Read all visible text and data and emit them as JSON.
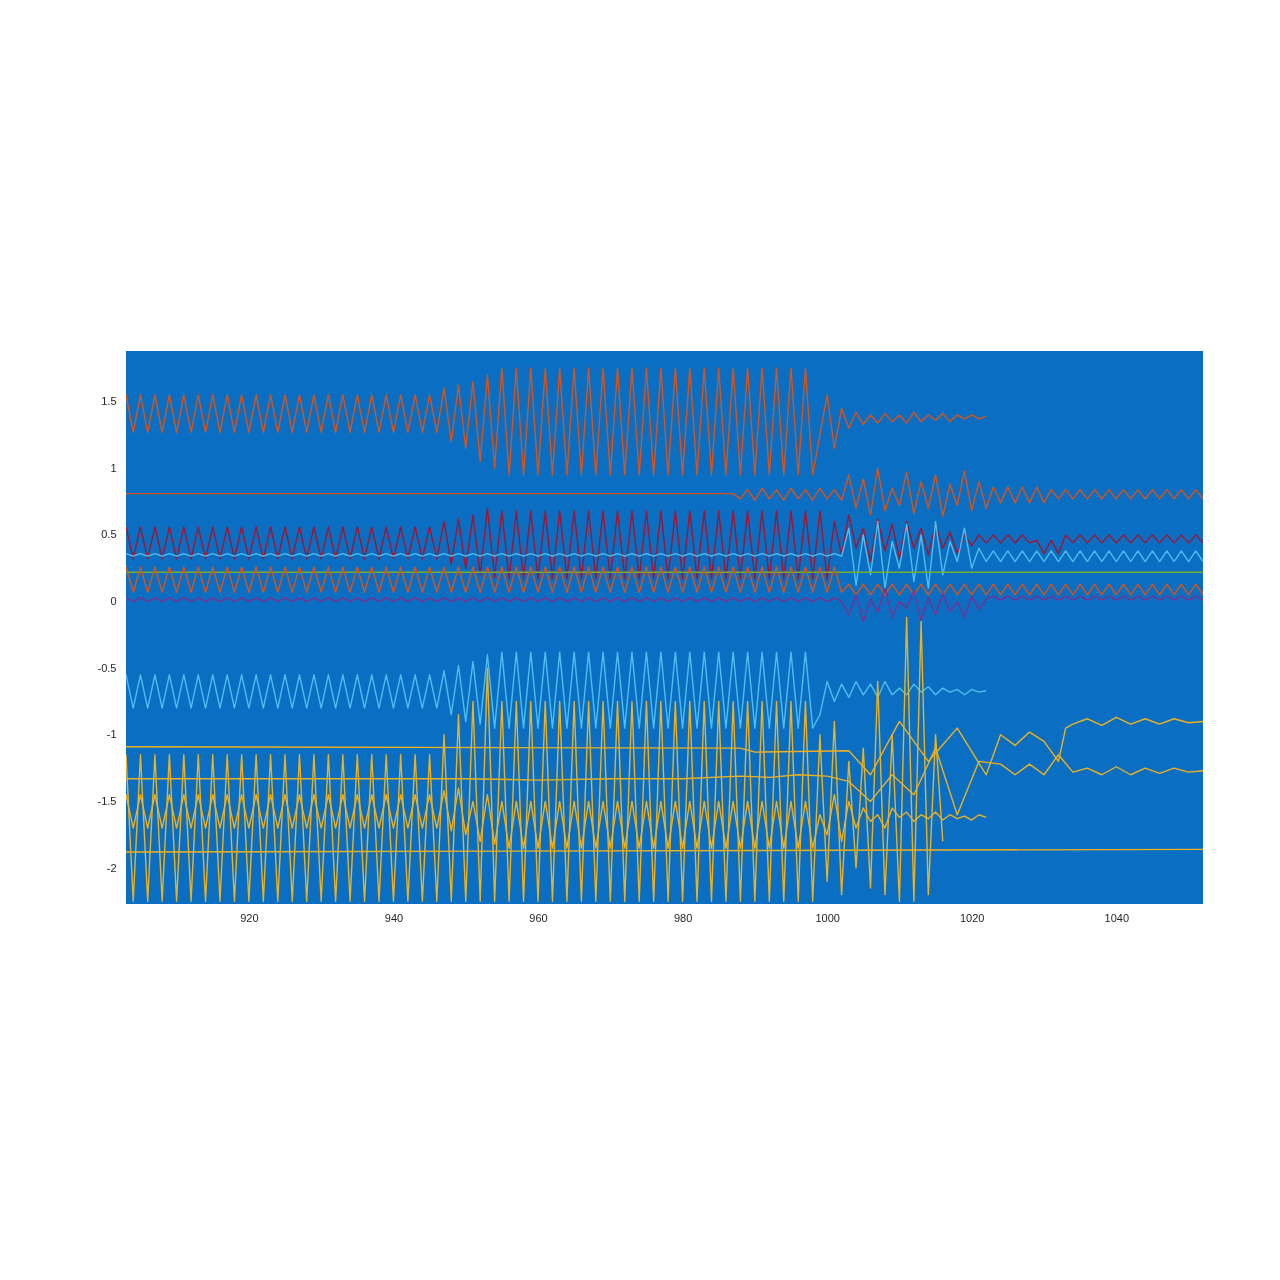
{
  "chart_data": {
    "type": "line",
    "xlim": [
      903,
      1052
    ],
    "ylim": [
      -2.27,
      1.88
    ],
    "xticks": [
      920,
      940,
      960,
      980,
      1000,
      1020,
      1040
    ],
    "yticks": [
      -2,
      -1.5,
      -1,
      -0.5,
      0,
      0.5,
      1,
      1.5
    ],
    "grid": false,
    "x": [
      903,
      904,
      905,
      906,
      907,
      908,
      909,
      910,
      911,
      912,
      913,
      914,
      915,
      916,
      917,
      918,
      919,
      920,
      921,
      922,
      923,
      924,
      925,
      926,
      927,
      928,
      929,
      930,
      931,
      932,
      933,
      934,
      935,
      936,
      937,
      938,
      939,
      940,
      941,
      942,
      943,
      944,
      945,
      946,
      947,
      948,
      949,
      950,
      951,
      952,
      953,
      954,
      955,
      956,
      957,
      958,
      959,
      960,
      961,
      962,
      963,
      964,
      965,
      966,
      967,
      968,
      969,
      970,
      971,
      972,
      973,
      974,
      975,
      976,
      977,
      978,
      979,
      980,
      981,
      982,
      983,
      984,
      985,
      986,
      987,
      988,
      989,
      990,
      991,
      992,
      993,
      994,
      995,
      996,
      997,
      998,
      999,
      1000,
      1001,
      1002,
      1003,
      1004,
      1005,
      1006,
      1007,
      1008,
      1009,
      1010,
      1011,
      1012,
      1013,
      1014,
      1015,
      1016,
      1017,
      1018,
      1019,
      1020,
      1021,
      1022,
      1023,
      1024,
      1025,
      1026,
      1027,
      1028,
      1029,
      1030,
      1031,
      1032,
      1033,
      1034,
      1035,
      1036,
      1037,
      1038,
      1039,
      1040,
      1041,
      1042,
      1043,
      1044,
      1045,
      1046,
      1047,
      1048,
      1049,
      1050,
      1051,
      1052
    ],
    "series": [
      {
        "color": "#D95319",
        "values": [
          1.55,
          1.27,
          1.55,
          1.27,
          1.55,
          1.27,
          1.55,
          1.27,
          1.55,
          1.27,
          1.55,
          1.27,
          1.55,
          1.27,
          1.55,
          1.27,
          1.55,
          1.27,
          1.55,
          1.27,
          1.55,
          1.27,
          1.55,
          1.27,
          1.55,
          1.27,
          1.55,
          1.27,
          1.55,
          1.27,
          1.55,
          1.27,
          1.55,
          1.27,
          1.55,
          1.27,
          1.55,
          1.27,
          1.55,
          1.27,
          1.55,
          1.27,
          1.55,
          1.27,
          1.6,
          1.2,
          1.62,
          1.15,
          1.65,
          1.05,
          1.7,
          1.0,
          1.75,
          0.95,
          1.75,
          0.95,
          1.75,
          0.95,
          1.75,
          0.95,
          1.75,
          0.95,
          1.75,
          0.95,
          1.75,
          0.95,
          1.75,
          0.95,
          1.75,
          0.95,
          1.75,
          0.95,
          1.75,
          0.95,
          1.75,
          0.95,
          1.75,
          0.95,
          1.75,
          0.95,
          1.75,
          0.95,
          1.75,
          0.95,
          1.75,
          0.95,
          1.75,
          0.95,
          1.75,
          0.95,
          1.75,
          0.95,
          1.75,
          0.95,
          1.75,
          0.95,
          1.25,
          1.55,
          1.15,
          1.45,
          1.3,
          1.42,
          1.33,
          1.4,
          1.34,
          1.41,
          1.35,
          1.4,
          1.34,
          1.42,
          1.35,
          1.4,
          1.36,
          1.41,
          1.35,
          1.4,
          1.37,
          1.4,
          1.37,
          1.39,
          null,
          null,
          null,
          null,
          null,
          null,
          null,
          null,
          null,
          null,
          null,
          null,
          null,
          null,
          null,
          null,
          null,
          null,
          null,
          null,
          null,
          null,
          null,
          null,
          null,
          null,
          null,
          null,
          null,
          null
        ]
      },
      {
        "color": "#D95319",
        "values": [
          0.81,
          0.81,
          0.81,
          0.81,
          0.81,
          0.81,
          0.81,
          0.81,
          0.81,
          0.81,
          0.81,
          0.81,
          0.81,
          0.81,
          0.81,
          0.81,
          0.81,
          0.81,
          0.81,
          0.81,
          0.81,
          0.81,
          0.81,
          0.81,
          0.81,
          0.81,
          0.81,
          0.81,
          0.81,
          0.81,
          0.81,
          0.81,
          0.81,
          0.81,
          0.81,
          0.81,
          0.81,
          0.81,
          0.81,
          0.81,
          0.81,
          0.81,
          0.81,
          0.81,
          0.81,
          0.81,
          0.81,
          0.81,
          0.81,
          0.81,
          0.81,
          0.81,
          0.81,
          0.81,
          0.81,
          0.81,
          0.81,
          0.81,
          0.81,
          0.81,
          0.81,
          0.81,
          0.81,
          0.81,
          0.81,
          0.81,
          0.81,
          0.81,
          0.81,
          0.81,
          0.81,
          0.81,
          0.81,
          0.81,
          0.81,
          0.81,
          0.81,
          0.81,
          0.81,
          0.81,
          0.81,
          0.81,
          0.81,
          0.81,
          0.81,
          0.77,
          0.84,
          0.76,
          0.85,
          0.77,
          0.84,
          0.76,
          0.85,
          0.77,
          0.84,
          0.76,
          0.85,
          0.77,
          0.84,
          0.76,
          0.95,
          0.7,
          0.92,
          0.65,
          1.0,
          0.68,
          0.85,
          0.72,
          0.97,
          0.66,
          0.9,
          0.7,
          0.95,
          0.64,
          0.88,
          0.72,
          0.98,
          0.68,
          0.9,
          0.7,
          0.86,
          0.74,
          0.86,
          0.74,
          0.86,
          0.74,
          0.86,
          0.74,
          0.84,
          0.77,
          0.84,
          0.77,
          0.84,
          0.77,
          0.84,
          0.77,
          0.84,
          0.77,
          0.84,
          0.77,
          0.84,
          0.77,
          0.84,
          0.77,
          0.84,
          0.77,
          0.84,
          0.77,
          0.84,
          0.77
        ]
      },
      {
        "color": "#A2142F",
        "values": [
          0.56,
          0.32,
          0.56,
          0.32,
          0.56,
          0.32,
          0.56,
          0.32,
          0.56,
          0.32,
          0.56,
          0.32,
          0.56,
          0.32,
          0.56,
          0.32,
          0.56,
          0.32,
          0.56,
          0.32,
          0.56,
          0.32,
          0.56,
          0.32,
          0.56,
          0.32,
          0.56,
          0.32,
          0.56,
          0.32,
          0.56,
          0.32,
          0.56,
          0.32,
          0.56,
          0.32,
          0.56,
          0.32,
          0.56,
          0.32,
          0.56,
          0.32,
          0.56,
          0.32,
          0.6,
          0.28,
          0.62,
          0.25,
          0.65,
          0.2,
          0.7,
          0.18,
          0.68,
          0.17,
          0.68,
          0.17,
          0.68,
          0.17,
          0.68,
          0.17,
          0.68,
          0.17,
          0.68,
          0.17,
          0.68,
          0.17,
          0.68,
          0.17,
          0.68,
          0.17,
          0.68,
          0.17,
          0.68,
          0.17,
          0.68,
          0.17,
          0.68,
          0.17,
          0.68,
          0.17,
          0.68,
          0.17,
          0.68,
          0.17,
          0.68,
          0.17,
          0.68,
          0.17,
          0.68,
          0.17,
          0.68,
          0.17,
          0.68,
          0.17,
          0.68,
          0.17,
          0.68,
          0.17,
          0.6,
          0.35,
          0.65,
          0.4,
          0.55,
          0.3,
          0.62,
          0.38,
          0.58,
          0.32,
          0.6,
          0.4,
          0.55,
          0.35,
          0.58,
          0.4,
          0.52,
          0.36,
          0.5,
          0.42,
          0.5,
          0.44,
          0.5,
          0.44,
          0.5,
          0.44,
          0.5,
          0.44,
          0.46,
          0.36,
          0.46,
          0.36,
          0.5,
          0.44,
          0.5,
          0.44,
          0.5,
          0.44,
          0.5,
          0.44,
          0.5,
          0.44,
          0.5,
          0.44,
          0.5,
          0.44,
          0.5,
          0.44,
          0.5,
          0.44,
          0.5,
          0.44
        ]
      },
      {
        "color": "#4DBEEE",
        "values": [
          0.36,
          0.34,
          0.36,
          0.34,
          0.36,
          0.34,
          0.36,
          0.34,
          0.36,
          0.34,
          0.36,
          0.34,
          0.36,
          0.34,
          0.36,
          0.34,
          0.36,
          0.34,
          0.36,
          0.34,
          0.36,
          0.34,
          0.36,
          0.34,
          0.36,
          0.34,
          0.36,
          0.34,
          0.36,
          0.34,
          0.36,
          0.34,
          0.36,
          0.34,
          0.36,
          0.34,
          0.36,
          0.34,
          0.36,
          0.34,
          0.36,
          0.34,
          0.36,
          0.34,
          0.36,
          0.34,
          0.36,
          0.34,
          0.36,
          0.34,
          0.36,
          0.34,
          0.36,
          0.34,
          0.36,
          0.34,
          0.36,
          0.34,
          0.36,
          0.34,
          0.36,
          0.34,
          0.36,
          0.34,
          0.36,
          0.34,
          0.36,
          0.34,
          0.36,
          0.34,
          0.36,
          0.34,
          0.36,
          0.34,
          0.36,
          0.34,
          0.36,
          0.34,
          0.36,
          0.34,
          0.36,
          0.34,
          0.36,
          0.34,
          0.36,
          0.34,
          0.36,
          0.34,
          0.36,
          0.34,
          0.36,
          0.34,
          0.36,
          0.34,
          0.36,
          0.34,
          0.36,
          0.34,
          0.36,
          0.34,
          0.55,
          0.12,
          0.5,
          0.2,
          0.6,
          0.1,
          0.45,
          0.25,
          0.58,
          0.15,
          0.5,
          0.1,
          0.6,
          0.2,
          0.45,
          0.3,
          0.55,
          0.25,
          0.4,
          0.3,
          0.38,
          0.3,
          0.38,
          0.3,
          0.38,
          0.3,
          0.38,
          0.3,
          0.38,
          0.3,
          0.38,
          0.3,
          0.38,
          0.3,
          0.38,
          0.3,
          0.38,
          0.3,
          0.38,
          0.3,
          0.38,
          0.3,
          0.38,
          0.3,
          0.38,
          0.3,
          0.38,
          0.3,
          0.38,
          0.3
        ]
      },
      {
        "color": "#77AC30",
        "x": [
          903,
          1052
        ],
        "values": [
          0.22,
          0.22
        ]
      },
      {
        "color": "#D95319",
        "values": [
          0.26,
          0.07,
          0.26,
          0.07,
          0.26,
          0.07,
          0.26,
          0.07,
          0.26,
          0.07,
          0.26,
          0.07,
          0.26,
          0.07,
          0.26,
          0.07,
          0.26,
          0.07,
          0.26,
          0.07,
          0.26,
          0.07,
          0.26,
          0.07,
          0.26,
          0.07,
          0.26,
          0.07,
          0.26,
          0.07,
          0.26,
          0.07,
          0.26,
          0.07,
          0.26,
          0.07,
          0.26,
          0.07,
          0.26,
          0.07,
          0.26,
          0.07,
          0.26,
          0.07,
          0.26,
          0.07,
          0.26,
          0.07,
          0.26,
          0.07,
          0.26,
          0.07,
          0.26,
          0.07,
          0.26,
          0.07,
          0.26,
          0.07,
          0.26,
          0.07,
          0.26,
          0.07,
          0.26,
          0.07,
          0.26,
          0.07,
          0.26,
          0.07,
          0.26,
          0.07,
          0.26,
          0.07,
          0.26,
          0.07,
          0.26,
          0.07,
          0.26,
          0.07,
          0.26,
          0.07,
          0.26,
          0.07,
          0.26,
          0.07,
          0.26,
          0.07,
          0.26,
          0.07,
          0.26,
          0.07,
          0.26,
          0.07,
          0.26,
          0.07,
          0.26,
          0.07,
          0.26,
          0.07,
          0.26,
          0.07,
          0.13,
          0.05,
          0.13,
          0.05,
          0.13,
          0.05,
          0.13,
          0.05,
          0.13,
          0.05,
          0.13,
          0.05,
          0.13,
          0.05,
          0.13,
          0.05,
          0.13,
          0.05,
          0.13,
          0.05,
          0.13,
          0.05,
          0.13,
          0.05,
          0.13,
          0.05,
          0.13,
          0.05,
          0.13,
          0.05,
          0.13,
          0.05,
          0.13,
          0.05,
          0.13,
          0.05,
          0.13,
          0.05,
          0.13,
          0.05,
          0.13,
          0.05,
          0.13,
          0.05,
          0.13,
          0.05,
          0.13,
          0.05,
          0.13,
          0.05
        ]
      },
      {
        "color": "#7E2F8E",
        "values": [
          0.03,
          0.0,
          0.03,
          0.0,
          0.03,
          0.0,
          0.03,
          0.0,
          0.03,
          0.0,
          0.03,
          0.0,
          0.03,
          0.0,
          0.03,
          0.0,
          0.03,
          0.0,
          0.03,
          0.0,
          0.03,
          0.0,
          0.03,
          0.0,
          0.03,
          0.0,
          0.03,
          0.0,
          0.03,
          0.0,
          0.03,
          0.0,
          0.03,
          0.0,
          0.03,
          0.0,
          0.03,
          0.0,
          0.03,
          0.0,
          0.03,
          0.0,
          0.03,
          0.0,
          0.03,
          0.0,
          0.03,
          0.0,
          0.03,
          0.0,
          0.03,
          0.0,
          0.03,
          0.0,
          0.03,
          0.0,
          0.03,
          0.0,
          0.03,
          0.0,
          0.03,
          0.0,
          0.03,
          0.0,
          0.03,
          0.0,
          0.03,
          0.0,
          0.03,
          0.0,
          0.03,
          0.0,
          0.03,
          0.0,
          0.03,
          0.0,
          0.03,
          0.0,
          0.03,
          0.0,
          0.03,
          0.0,
          0.03,
          0.0,
          0.03,
          0.0,
          0.03,
          0.0,
          0.03,
          0.0,
          0.03,
          0.0,
          0.03,
          0.0,
          0.03,
          0.0,
          0.03,
          0.0,
          0.03,
          0.0,
          -0.1,
          0.05,
          -0.15,
          0.02,
          -0.08,
          0.1,
          -0.12,
          0.0,
          -0.05,
          0.08,
          -0.14,
          0.03,
          -0.1,
          0.06,
          -0.08,
          0.0,
          -0.12,
          0.04,
          -0.06,
          0.02,
          0.04,
          0.01,
          0.04,
          0.01,
          0.04,
          0.01,
          0.04,
          0.01,
          0.04,
          0.01,
          0.04,
          0.01,
          0.04,
          0.01,
          0.04,
          0.01,
          0.04,
          0.01,
          0.04,
          0.01,
          0.04,
          0.01,
          0.04,
          0.01,
          0.04,
          0.01,
          0.04,
          0.01,
          0.04,
          0.01
        ]
      },
      {
        "color": "#4DBEEE",
        "values": [
          -0.55,
          -0.8,
          -0.55,
          -0.8,
          -0.55,
          -0.8,
          -0.55,
          -0.8,
          -0.55,
          -0.8,
          -0.55,
          -0.8,
          -0.55,
          -0.8,
          -0.55,
          -0.8,
          -0.55,
          -0.8,
          -0.55,
          -0.8,
          -0.55,
          -0.8,
          -0.55,
          -0.8,
          -0.55,
          -0.8,
          -0.55,
          -0.8,
          -0.55,
          -0.8,
          -0.55,
          -0.8,
          -0.55,
          -0.8,
          -0.55,
          -0.8,
          -0.55,
          -0.8,
          -0.55,
          -0.8,
          -0.55,
          -0.8,
          -0.55,
          -0.8,
          -0.52,
          -0.85,
          -0.48,
          -0.9,
          -0.45,
          -0.92,
          -0.4,
          -0.95,
          -0.38,
          -0.95,
          -0.38,
          -0.95,
          -0.38,
          -0.95,
          -0.38,
          -0.95,
          -0.38,
          -0.95,
          -0.38,
          -0.95,
          -0.38,
          -0.95,
          -0.38,
          -0.95,
          -0.38,
          -0.95,
          -0.38,
          -0.95,
          -0.38,
          -0.95,
          -0.38,
          -0.95,
          -0.38,
          -0.95,
          -0.38,
          -0.95,
          -0.38,
          -0.95,
          -0.38,
          -0.95,
          -0.38,
          -0.95,
          -0.38,
          -0.95,
          -0.38,
          -0.95,
          -0.38,
          -0.95,
          -0.38,
          -0.95,
          -0.38,
          -0.95,
          -0.85,
          -0.6,
          -0.75,
          -0.62,
          -0.72,
          -0.6,
          -0.7,
          -0.62,
          -0.72,
          -0.6,
          -0.7,
          -0.65,
          -0.7,
          -0.62,
          -0.68,
          -0.64,
          -0.7,
          -0.65,
          -0.68,
          -0.66,
          -0.7,
          -0.66,
          -0.68,
          -0.67,
          null,
          null,
          null,
          null,
          null,
          null,
          null,
          null,
          null,
          null,
          null,
          null,
          null,
          null,
          null,
          null,
          null,
          null,
          null,
          null,
          null,
          null,
          null,
          null,
          null,
          null,
          null,
          null,
          null,
          null
        ]
      },
      {
        "color": "#EDB120",
        "x": [
          903,
          988,
          990,
          1003,
          1006,
          1010,
          1014,
          1018,
          1022,
          1024,
          1026,
          1028,
          1030,
          1032,
          1033,
          1034,
          1036,
          1038,
          1040,
          1042,
          1044,
          1046,
          1048,
          1050,
          1052
        ],
        "values": [
          -1.09,
          -1.1,
          -1.13,
          -1.12,
          -1.3,
          -0.9,
          -1.2,
          -0.95,
          -1.3,
          -1.0,
          -1.08,
          -0.98,
          -1.05,
          -1.2,
          -0.95,
          -0.92,
          -0.88,
          -0.93,
          -0.87,
          -0.92,
          -0.88,
          -0.92,
          -0.88,
          -0.91,
          -0.9
        ]
      },
      {
        "color": "#EDB120",
        "x": [
          903,
          950,
          960,
          970,
          980,
          988,
          992,
          996,
          1000,
          1003,
          1006,
          1009,
          1012,
          1015,
          1018,
          1021,
          1024,
          1026,
          1028,
          1030,
          1032,
          1034,
          1036,
          1038,
          1040,
          1042,
          1044,
          1046,
          1048,
          1050,
          1052
        ],
        "values": [
          -1.33,
          -1.33,
          -1.34,
          -1.33,
          -1.33,
          -1.31,
          -1.32,
          -1.3,
          -1.31,
          -1.35,
          -1.5,
          -1.3,
          -1.45,
          -1.1,
          -1.6,
          -1.2,
          -1.22,
          -1.3,
          -1.22,
          -1.3,
          -1.15,
          -1.28,
          -1.25,
          -1.3,
          -1.24,
          -1.3,
          -1.25,
          -1.29,
          -1.25,
          -1.28,
          -1.27
        ]
      },
      {
        "color": "#EDB120",
        "values": [
          -1.45,
          -1.7,
          -1.45,
          -1.7,
          -1.45,
          -1.7,
          -1.45,
          -1.7,
          -1.45,
          -1.7,
          -1.45,
          -1.7,
          -1.45,
          -1.7,
          -1.45,
          -1.7,
          -1.45,
          -1.7,
          -1.45,
          -1.7,
          -1.45,
          -1.7,
          -1.45,
          -1.7,
          -1.45,
          -1.7,
          -1.45,
          -1.7,
          -1.45,
          -1.7,
          -1.45,
          -1.7,
          -1.45,
          -1.7,
          -1.45,
          -1.7,
          -1.45,
          -1.7,
          -1.45,
          -1.7,
          -1.45,
          -1.7,
          -1.45,
          -1.7,
          -1.42,
          -1.72,
          -1.4,
          -1.75,
          -1.5,
          -1.8,
          -1.45,
          -1.82,
          -1.5,
          -1.85,
          -1.5,
          -1.85,
          -1.5,
          -1.85,
          -1.5,
          -1.85,
          -1.5,
          -1.85,
          -1.5,
          -1.85,
          -1.5,
          -1.85,
          -1.5,
          -1.85,
          -1.5,
          -1.85,
          -1.5,
          -1.85,
          -1.5,
          -1.85,
          -1.5,
          -1.85,
          -1.5,
          -1.85,
          -1.5,
          -1.85,
          -1.5,
          -1.85,
          -1.5,
          -1.85,
          -1.5,
          -1.85,
          -1.5,
          -1.85,
          -1.5,
          -1.85,
          -1.5,
          -1.85,
          -1.5,
          -1.85,
          -1.5,
          -1.85,
          -1.6,
          -1.75,
          -1.45,
          -1.8,
          -1.5,
          -1.7,
          -1.55,
          -1.65,
          -1.6,
          -1.7,
          -1.55,
          -1.62,
          -1.58,
          -1.65,
          -1.6,
          -1.63,
          -1.58,
          -1.64,
          -1.6,
          -1.63,
          -1.61,
          -1.64,
          -1.6,
          -1.62,
          null,
          null,
          null,
          null,
          null,
          null,
          null,
          null,
          null,
          null,
          null,
          null,
          null,
          null,
          null,
          null,
          null,
          null,
          null,
          null,
          null,
          null,
          null,
          null,
          null,
          null,
          null,
          null,
          null,
          null
        ]
      },
      {
        "color": "#EDB120",
        "values": [
          -1.15,
          -2.25,
          -1.15,
          -2.25,
          -1.15,
          -2.25,
          -1.15,
          -2.25,
          -1.15,
          -2.25,
          -1.15,
          -2.25,
          -1.15,
          -2.25,
          -1.15,
          -2.25,
          -1.15,
          -2.25,
          -1.15,
          -2.25,
          -1.15,
          -2.25,
          -1.15,
          -2.25,
          -1.15,
          -2.25,
          -1.15,
          -2.25,
          -1.15,
          -2.25,
          -1.15,
          -2.25,
          -1.15,
          -2.25,
          -1.15,
          -2.25,
          -1.15,
          -2.25,
          -1.15,
          -2.25,
          -1.15,
          -2.25,
          -1.15,
          -2.25,
          -1.0,
          -2.25,
          -0.85,
          -2.25,
          -0.75,
          -2.25,
          -0.5,
          -2.25,
          -0.75,
          -2.25,
          -0.75,
          -2.25,
          -0.75,
          -2.25,
          -0.75,
          -2.25,
          -0.75,
          -2.25,
          -0.75,
          -2.25,
          -0.75,
          -2.25,
          -0.75,
          -2.25,
          -0.75,
          -2.25,
          -0.75,
          -2.25,
          -0.75,
          -2.25,
          -0.75,
          -2.25,
          -0.75,
          -2.25,
          -0.75,
          -2.25,
          -0.75,
          -2.25,
          -0.75,
          -2.25,
          -0.75,
          -2.25,
          -0.75,
          -2.25,
          -0.75,
          -2.25,
          -0.75,
          -2.25,
          -0.75,
          -2.25,
          -0.75,
          -2.25,
          -1.0,
          -2.1,
          -0.9,
          -2.2,
          -1.2,
          -2.0,
          -1.1,
          -2.15,
          -0.6,
          -2.2,
          -1.0,
          -2.25,
          -0.12,
          -2.25,
          -0.15,
          -2.2,
          -1.0,
          -1.8,
          null,
          null,
          null,
          null,
          null,
          null,
          null,
          null,
          null,
          null,
          null,
          null,
          null,
          null,
          null,
          null,
          null,
          null,
          null,
          null,
          null,
          null,
          null,
          null,
          null,
          null,
          null,
          null,
          null,
          null,
          null,
          null,
          null,
          null,
          null,
          null
        ]
      },
      {
        "color": "#EDB120",
        "x": [
          903,
          1052
        ],
        "values": [
          -1.88,
          -1.86
        ]
      }
    ]
  }
}
